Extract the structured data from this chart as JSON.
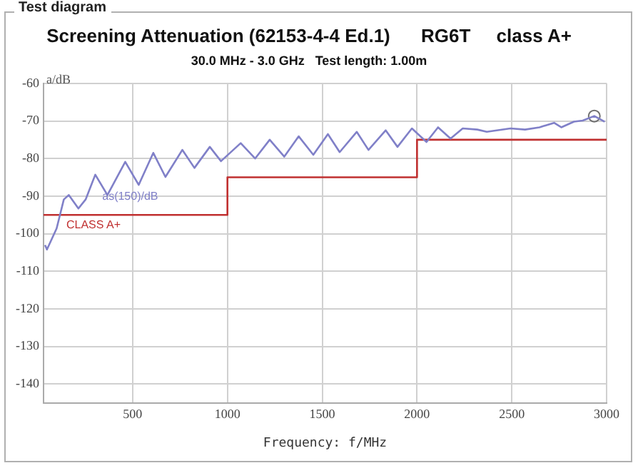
{
  "chart_data": {
    "type": "line",
    "title": "Screening Attenuation (62153-4-4 Ed.1)      RG6T     class A+",
    "subtitle": "30.0 MHz - 3.0 GHz   Test length: 1.00m",
    "xlabel": "Frequency: f/MHz",
    "ylabel": "a/dB",
    "annotations": [
      "Test diagram"
    ],
    "xlim": [
      30,
      3000
    ],
    "xticks": [
      500,
      1000,
      1500,
      2000,
      2500,
      3000
    ],
    "ylim": [
      -145,
      -60
    ],
    "yticks": [
      -60,
      -70,
      -80,
      -90,
      -100,
      -110,
      -120,
      -130,
      -140
    ],
    "grid": true,
    "legend": false,
    "marker": "none",
    "line_style": "solid",
    "series": [
      {
        "name": "as(150)/dB",
        "color": "#8080c8",
        "x": [
          38,
          48,
          99,
          137,
          163,
          214,
          252,
          303,
          367,
          461,
          532,
          609,
          673,
          762,
          826,
          907,
          966,
          1070,
          1146,
          1223,
          1300,
          1376,
          1453,
          1530,
          1592,
          1682,
          1744,
          1835,
          1897,
          1973,
          2050,
          2111,
          2177,
          2241,
          2318,
          2368,
          2493,
          2570,
          2646,
          2723,
          2761,
          2828,
          2874,
          2935,
          2990
        ],
        "values": [
          -103,
          -104.2,
          -98.6,
          -90.9,
          -89.7,
          -93.3,
          -90.9,
          -84.3,
          -89.7,
          -80.9,
          -87,
          -78.5,
          -84.9,
          -77.7,
          -82.5,
          -76.9,
          -80.7,
          -75.9,
          -80,
          -75,
          -79.5,
          -74.1,
          -79,
          -73.5,
          -78.3,
          -72.9,
          -77.7,
          -72.5,
          -76.9,
          -72,
          -75.6,
          -71.7,
          -74.7,
          -72,
          -72.3,
          -72.9,
          -72,
          -72.3,
          -71.7,
          -70.5,
          -71.7,
          -70.2,
          -69.9,
          -68.7,
          -70.2
        ]
      },
      {
        "name": "CLASS A+",
        "color": "#c03030",
        "x": [
          30,
          1000,
          1000,
          2000,
          2000,
          3000
        ],
        "values": [
          -95,
          -95,
          -85,
          -85,
          -75,
          -75
        ]
      },
      {
        "type": "scatter",
        "marker": "circle",
        "color": "#707070",
        "x": [
          2935
        ],
        "values": [
          -68.7
        ]
      }
    ]
  }
}
